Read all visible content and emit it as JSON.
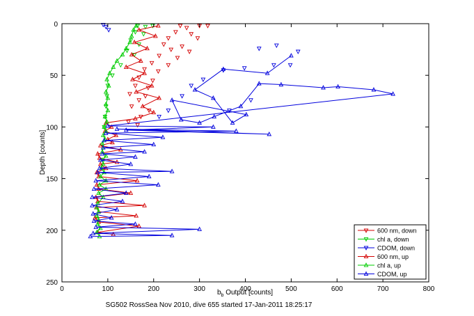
{
  "chart_data": {
    "type": "scatter",
    "xlabel_main": "b",
    "xlabel_sub": "b",
    "xlabel_rest": " Output [counts]",
    "ylabel": "Depth [counts]",
    "caption": "SG502 RossSea Nov 2010, dive 655 started 17-Jan-2011 18:25:17",
    "xlim": [
      0,
      800
    ],
    "ylim": [
      250,
      0
    ],
    "y_reversed": true,
    "grid": false,
    "legend_position": "bottom-right",
    "x_ticks": [
      "0",
      "100",
      "200",
      "300",
      "400",
      "500",
      "600",
      "700",
      "800"
    ],
    "y_ticks": [
      "0",
      "50",
      "100",
      "150",
      "200",
      "250"
    ],
    "series": [
      {
        "name": "600 nm, down",
        "color": "#d40000",
        "marker": "triangle-down",
        "line": false,
        "points": [
          [
            258,
            2
          ],
          [
            272,
            4
          ],
          [
            300,
            2
          ],
          [
            318,
            2
          ],
          [
            248,
            8
          ],
          [
            282,
            10
          ],
          [
            232,
            14
          ],
          [
            296,
            14
          ],
          [
            222,
            20
          ],
          [
            262,
            22
          ],
          [
            238,
            25
          ],
          [
            278,
            27
          ],
          [
            212,
            31
          ],
          [
            252,
            33
          ],
          [
            196,
            38
          ],
          [
            232,
            40
          ],
          [
            180,
            44
          ],
          [
            210,
            46
          ],
          [
            168,
            52
          ],
          [
            198,
            55
          ],
          [
            160,
            60
          ],
          [
            188,
            62
          ],
          [
            148,
            68
          ],
          [
            182,
            70
          ],
          [
            168,
            74
          ],
          [
            152,
            80
          ],
          [
            190,
            84
          ],
          [
            172,
            90
          ],
          [
            145,
            95
          ],
          [
            165,
            98
          ]
        ]
      },
      {
        "name": "chl a, down",
        "color": "#00cc00",
        "marker": "triangle-down",
        "line": false,
        "points": [
          [
            165,
            2
          ],
          [
            182,
            3
          ],
          [
            198,
            2
          ],
          [
            160,
            8
          ],
          [
            178,
            10
          ],
          [
            150,
            16
          ],
          [
            168,
            20
          ],
          [
            142,
            26
          ],
          [
            158,
            30
          ],
          [
            128,
            40
          ],
          [
            110,
            50
          ],
          [
            100,
            60
          ],
          [
            98,
            70
          ],
          [
            96,
            80
          ],
          [
            94,
            90
          ],
          [
            92,
            100
          ]
        ]
      },
      {
        "name": "CDOM, down",
        "color": "#0000dd",
        "marker": "triangle-down",
        "line": false,
        "points": [
          [
            90,
            1
          ],
          [
            96,
            3
          ],
          [
            102,
            6
          ],
          [
            430,
            24
          ],
          [
            468,
            21
          ],
          [
            515,
            27
          ],
          [
            462,
            40
          ],
          [
            398,
            43
          ],
          [
            352,
            45
          ],
          [
            308,
            54
          ],
          [
            282,
            60
          ],
          [
            262,
            70
          ],
          [
            232,
            84
          ],
          [
            212,
            90
          ],
          [
            365,
            84
          ],
          [
            412,
            74
          ],
          [
            498,
            40
          ]
        ]
      },
      {
        "name": "600 nm, up",
        "color": "#d40000",
        "marker": "triangle-up",
        "line": true,
        "points": [
          [
            112,
            204
          ],
          [
            78,
            202
          ],
          [
            168,
            196
          ],
          [
            80,
            192
          ],
          [
            72,
            188
          ],
          [
            162,
            186
          ],
          [
            80,
            182
          ],
          [
            75,
            178
          ],
          [
            180,
            176
          ],
          [
            78,
            172
          ],
          [
            74,
            168
          ],
          [
            150,
            164
          ],
          [
            80,
            160
          ],
          [
            76,
            156
          ],
          [
            164,
            152
          ],
          [
            80,
            148
          ],
          [
            76,
            144
          ],
          [
            96,
            140
          ],
          [
            84,
            136
          ],
          [
            120,
            134
          ],
          [
            82,
            130
          ],
          [
            78,
            126
          ],
          [
            128,
            122
          ],
          [
            84,
            118
          ],
          [
            110,
            115
          ],
          [
            100,
            112
          ],
          [
            118,
            108
          ],
          [
            94,
            104
          ],
          [
            108,
            100
          ],
          [
            96,
            96
          ],
          [
            160,
            92
          ],
          [
            200,
            86
          ],
          [
            176,
            80
          ],
          [
            212,
            72
          ],
          [
            162,
            66
          ],
          [
            196,
            60
          ],
          [
            154,
            54
          ],
          [
            180,
            48
          ],
          [
            140,
            42
          ],
          [
            172,
            36
          ],
          [
            152,
            30
          ],
          [
            186,
            24
          ],
          [
            158,
            18
          ],
          [
            204,
            12
          ],
          [
            168,
            6
          ],
          [
            210,
            2
          ]
        ]
      },
      {
        "name": "chl a, up",
        "color": "#00cc00",
        "marker": "triangle-up",
        "line": true,
        "points": [
          [
            82,
            206
          ],
          [
            76,
            202
          ],
          [
            84,
            198
          ],
          [
            78,
            194
          ],
          [
            80,
            190
          ],
          [
            76,
            186
          ],
          [
            80,
            182
          ],
          [
            76,
            178
          ],
          [
            78,
            174
          ],
          [
            90,
            168
          ],
          [
            80,
            164
          ],
          [
            96,
            160
          ],
          [
            82,
            156
          ],
          [
            96,
            152
          ],
          [
            84,
            148
          ],
          [
            92,
            144
          ],
          [
            86,
            140
          ],
          [
            90,
            136
          ],
          [
            88,
            132
          ],
          [
            96,
            128
          ],
          [
            88,
            124
          ],
          [
            90,
            120
          ],
          [
            88,
            116
          ],
          [
            94,
            112
          ],
          [
            90,
            108
          ],
          [
            96,
            104
          ],
          [
            92,
            100
          ],
          [
            98,
            95
          ],
          [
            94,
            90
          ],
          [
            100,
            84
          ],
          [
            96,
            78
          ],
          [
            100,
            72
          ],
          [
            96,
            66
          ],
          [
            102,
            60
          ],
          [
            98,
            54
          ],
          [
            104,
            48
          ],
          [
            112,
            42
          ],
          [
            120,
            36
          ],
          [
            132,
            30
          ],
          [
            140,
            24
          ],
          [
            148,
            18
          ],
          [
            152,
            12
          ],
          [
            156,
            6
          ],
          [
            162,
            2
          ]
        ]
      },
      {
        "name": "CDOM, up",
        "color": "#0000dd",
        "marker": "triangle-up",
        "line": true,
        "points": [
          [
            62,
            206
          ],
          [
            240,
            205
          ],
          [
            68,
            203
          ],
          [
            300,
            199
          ],
          [
            74,
            197
          ],
          [
            160,
            194
          ],
          [
            70,
            191
          ],
          [
            108,
            188
          ],
          [
            68,
            184
          ],
          [
            120,
            180
          ],
          [
            66,
            176
          ],
          [
            132,
            172
          ],
          [
            66,
            168
          ],
          [
            140,
            164
          ],
          [
            70,
            160
          ],
          [
            210,
            156
          ],
          [
            74,
            152
          ],
          [
            190,
            148
          ],
          [
            78,
            144
          ],
          [
            240,
            143
          ],
          [
            82,
            140
          ],
          [
            150,
            136
          ],
          [
            84,
            132
          ],
          [
            160,
            129
          ],
          [
            88,
            126
          ],
          [
            180,
            124
          ],
          [
            90,
            120
          ],
          [
            200,
            117
          ],
          [
            92,
            113
          ],
          [
            220,
            110
          ],
          [
            96,
            106
          ],
          [
            380,
            104
          ],
          [
            120,
            102
          ],
          [
            452,
            107
          ],
          [
            140,
            103
          ],
          [
            330,
            100
          ],
          [
            100,
            99
          ],
          [
            722,
            68
          ],
          [
            680,
            64
          ],
          [
            602,
            61
          ],
          [
            570,
            62
          ],
          [
            478,
            59
          ],
          [
            430,
            58
          ],
          [
            390,
            80
          ],
          [
            332,
            90
          ],
          [
            300,
            96
          ],
          [
            260,
            93
          ],
          [
            240,
            74
          ],
          [
            402,
            88
          ],
          [
            372,
            96
          ],
          [
            330,
            72
          ],
          [
            290,
            64
          ],
          [
            352,
            44
          ],
          [
            448,
            48
          ],
          [
            500,
            31
          ]
        ]
      }
    ]
  }
}
